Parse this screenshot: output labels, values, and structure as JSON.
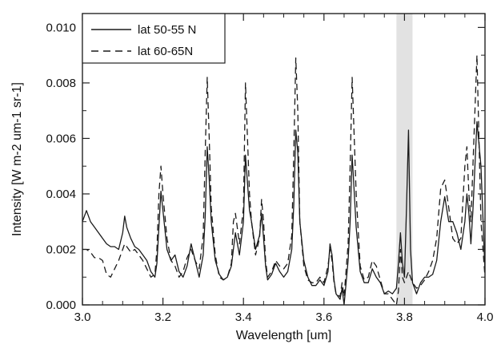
{
  "chart_data": {
    "type": "line",
    "title": "",
    "xlabel": "Wavelength [um]",
    "ylabel": "Intensity [W m-2 um-1 sr-1]",
    "xlim": [
      3.0,
      4.0
    ],
    "ylim": [
      0.0,
      0.0105
    ],
    "x_ticks": [
      3.0,
      3.2,
      3.4,
      3.6,
      3.8,
      4.0
    ],
    "x_tick_labels": [
      "3.0",
      "3.2",
      "3.4",
      "3.6",
      "3.8",
      "4.0"
    ],
    "y_ticks": [
      0.0,
      0.002,
      0.004,
      0.006,
      0.008,
      0.01
    ],
    "y_tick_labels": [
      "0.000",
      "0.002",
      "0.004",
      "0.006",
      "0.008",
      "0.010"
    ],
    "grid": false,
    "legend_position": "top-left",
    "highlight_band": {
      "x0": 3.78,
      "x1": 3.82,
      "color": "#e2e2e2"
    },
    "colors": {
      "lines": "#1a1a1a",
      "band": "#e2e2e2"
    },
    "series": [
      {
        "name": "lat 50-55 N",
        "style": "solid",
        "x": [
          3.0,
          3.01,
          3.02,
          3.03,
          3.04,
          3.05,
          3.06,
          3.07,
          3.08,
          3.09,
          3.1,
          3.105,
          3.11,
          3.12,
          3.13,
          3.14,
          3.15,
          3.16,
          3.17,
          3.18,
          3.185,
          3.19,
          3.195,
          3.2,
          3.21,
          3.22,
          3.23,
          3.24,
          3.25,
          3.26,
          3.27,
          3.28,
          3.29,
          3.3,
          3.305,
          3.31,
          3.315,
          3.32,
          3.33,
          3.34,
          3.35,
          3.36,
          3.37,
          3.375,
          3.38,
          3.39,
          3.4,
          3.405,
          3.41,
          3.415,
          3.42,
          3.43,
          3.44,
          3.445,
          3.45,
          3.455,
          3.46,
          3.47,
          3.48,
          3.49,
          3.5,
          3.51,
          3.52,
          3.525,
          3.53,
          3.535,
          3.54,
          3.55,
          3.56,
          3.57,
          3.58,
          3.59,
          3.6,
          3.61,
          3.615,
          3.62,
          3.625,
          3.63,
          3.64,
          3.645,
          3.65,
          3.66,
          3.665,
          3.67,
          3.68,
          3.69,
          3.7,
          3.71,
          3.72,
          3.73,
          3.74,
          3.75,
          3.76,
          3.77,
          3.78,
          3.785,
          3.79,
          3.795,
          3.8,
          3.805,
          3.81,
          3.815,
          3.82,
          3.83,
          3.84,
          3.85,
          3.86,
          3.87,
          3.88,
          3.89,
          3.9,
          3.91,
          3.92,
          3.93,
          3.94,
          3.95,
          3.955,
          3.96,
          3.965,
          3.97,
          3.98,
          3.99,
          4.0
        ],
        "y": [
          0.003,
          0.0034,
          0.003,
          0.0028,
          0.0026,
          0.0024,
          0.0022,
          0.0021,
          0.0021,
          0.002,
          0.0026,
          0.0032,
          0.0028,
          0.0024,
          0.0021,
          0.002,
          0.0018,
          0.0016,
          0.0012,
          0.001,
          0.0015,
          0.0028,
          0.0041,
          0.0034,
          0.002,
          0.0016,
          0.0018,
          0.0012,
          0.001,
          0.0014,
          0.0022,
          0.0016,
          0.001,
          0.0018,
          0.0032,
          0.0057,
          0.0045,
          0.003,
          0.0016,
          0.0011,
          0.0009,
          0.001,
          0.0014,
          0.002,
          0.0026,
          0.0018,
          0.003,
          0.0054,
          0.0044,
          0.0034,
          0.003,
          0.002,
          0.0025,
          0.0033,
          0.0024,
          0.0014,
          0.0009,
          0.0011,
          0.0015,
          0.0012,
          0.001,
          0.0012,
          0.002,
          0.0036,
          0.0063,
          0.0055,
          0.003,
          0.0016,
          0.001,
          0.0007,
          0.0007,
          0.0009,
          0.0007,
          0.0012,
          0.0022,
          0.0018,
          0.0009,
          0.0004,
          0.0002,
          0.0006,
          0.0,
          0.0016,
          0.003,
          0.0054,
          0.0028,
          0.0012,
          0.0008,
          0.0008,
          0.0013,
          0.001,
          0.0008,
          0.0004,
          0.0005,
          0.0004,
          0.0006,
          0.0015,
          0.0026,
          0.0015,
          0.001,
          0.0035,
          0.0063,
          0.002,
          0.0008,
          0.0004,
          0.0008,
          0.001,
          0.001,
          0.0011,
          0.0016,
          0.003,
          0.0039,
          0.003,
          0.003,
          0.0026,
          0.002,
          0.003,
          0.004,
          0.0033,
          0.0022,
          0.0034,
          0.0066,
          0.005,
          0.0012
        ]
      },
      {
        "name": "lat 60-65N",
        "style": "dashed",
        "x": [
          3.0,
          3.01,
          3.02,
          3.03,
          3.04,
          3.05,
          3.06,
          3.07,
          3.08,
          3.09,
          3.1,
          3.105,
          3.11,
          3.12,
          3.13,
          3.14,
          3.15,
          3.16,
          3.17,
          3.18,
          3.185,
          3.19,
          3.195,
          3.2,
          3.21,
          3.22,
          3.23,
          3.24,
          3.25,
          3.26,
          3.27,
          3.28,
          3.29,
          3.3,
          3.305,
          3.31,
          3.315,
          3.32,
          3.33,
          3.34,
          3.35,
          3.36,
          3.37,
          3.375,
          3.38,
          3.39,
          3.4,
          3.405,
          3.41,
          3.415,
          3.42,
          3.43,
          3.44,
          3.445,
          3.45,
          3.455,
          3.46,
          3.47,
          3.48,
          3.49,
          3.5,
          3.51,
          3.52,
          3.525,
          3.53,
          3.535,
          3.54,
          3.55,
          3.56,
          3.57,
          3.58,
          3.59,
          3.6,
          3.61,
          3.615,
          3.62,
          3.625,
          3.63,
          3.64,
          3.645,
          3.65,
          3.66,
          3.665,
          3.67,
          3.68,
          3.69,
          3.7,
          3.71,
          3.72,
          3.73,
          3.74,
          3.75,
          3.76,
          3.77,
          3.78,
          3.785,
          3.79,
          3.795,
          3.8,
          3.805,
          3.81,
          3.815,
          3.82,
          3.83,
          3.84,
          3.85,
          3.86,
          3.87,
          3.88,
          3.89,
          3.9,
          3.91,
          3.92,
          3.93,
          3.94,
          3.95,
          3.955,
          3.96,
          3.965,
          3.97,
          3.98,
          3.99,
          4.0
        ],
        "y": [
          0.002,
          0.002,
          0.0019,
          0.0017,
          0.0017,
          0.0016,
          0.0011,
          0.001,
          0.0013,
          0.0016,
          0.002,
          0.0022,
          0.0021,
          0.0019,
          0.002,
          0.0018,
          0.0016,
          0.0013,
          0.001,
          0.0011,
          0.002,
          0.004,
          0.005,
          0.004,
          0.0024,
          0.0016,
          0.0014,
          0.001,
          0.0012,
          0.0017,
          0.002,
          0.0016,
          0.0013,
          0.0025,
          0.0055,
          0.0082,
          0.006,
          0.0035,
          0.0018,
          0.001,
          0.0009,
          0.001,
          0.0015,
          0.003,
          0.0033,
          0.0022,
          0.0035,
          0.008,
          0.006,
          0.004,
          0.003,
          0.0018,
          0.0024,
          0.0038,
          0.003,
          0.0016,
          0.001,
          0.0012,
          0.0016,
          0.0014,
          0.0013,
          0.0015,
          0.0025,
          0.0055,
          0.0089,
          0.007,
          0.003,
          0.0014,
          0.0009,
          0.0008,
          0.0008,
          0.001,
          0.0008,
          0.0014,
          0.002,
          0.0016,
          0.0008,
          0.0004,
          0.0003,
          0.0008,
          0.0003,
          0.0022,
          0.005,
          0.0082,
          0.004,
          0.0014,
          0.0009,
          0.001,
          0.0016,
          0.0014,
          0.0009,
          0.0004,
          0.0004,
          0.0002,
          0.0,
          0.0005,
          0.002,
          0.001,
          0.0008,
          0.001,
          0.0012,
          0.001,
          0.0008,
          0.0006,
          0.0007,
          0.0009,
          0.0012,
          0.0016,
          0.0024,
          0.0042,
          0.0045,
          0.0035,
          0.0024,
          0.0022,
          0.0024,
          0.005,
          0.0057,
          0.004,
          0.003,
          0.005,
          0.009,
          0.003,
          0.001
        ]
      }
    ]
  }
}
